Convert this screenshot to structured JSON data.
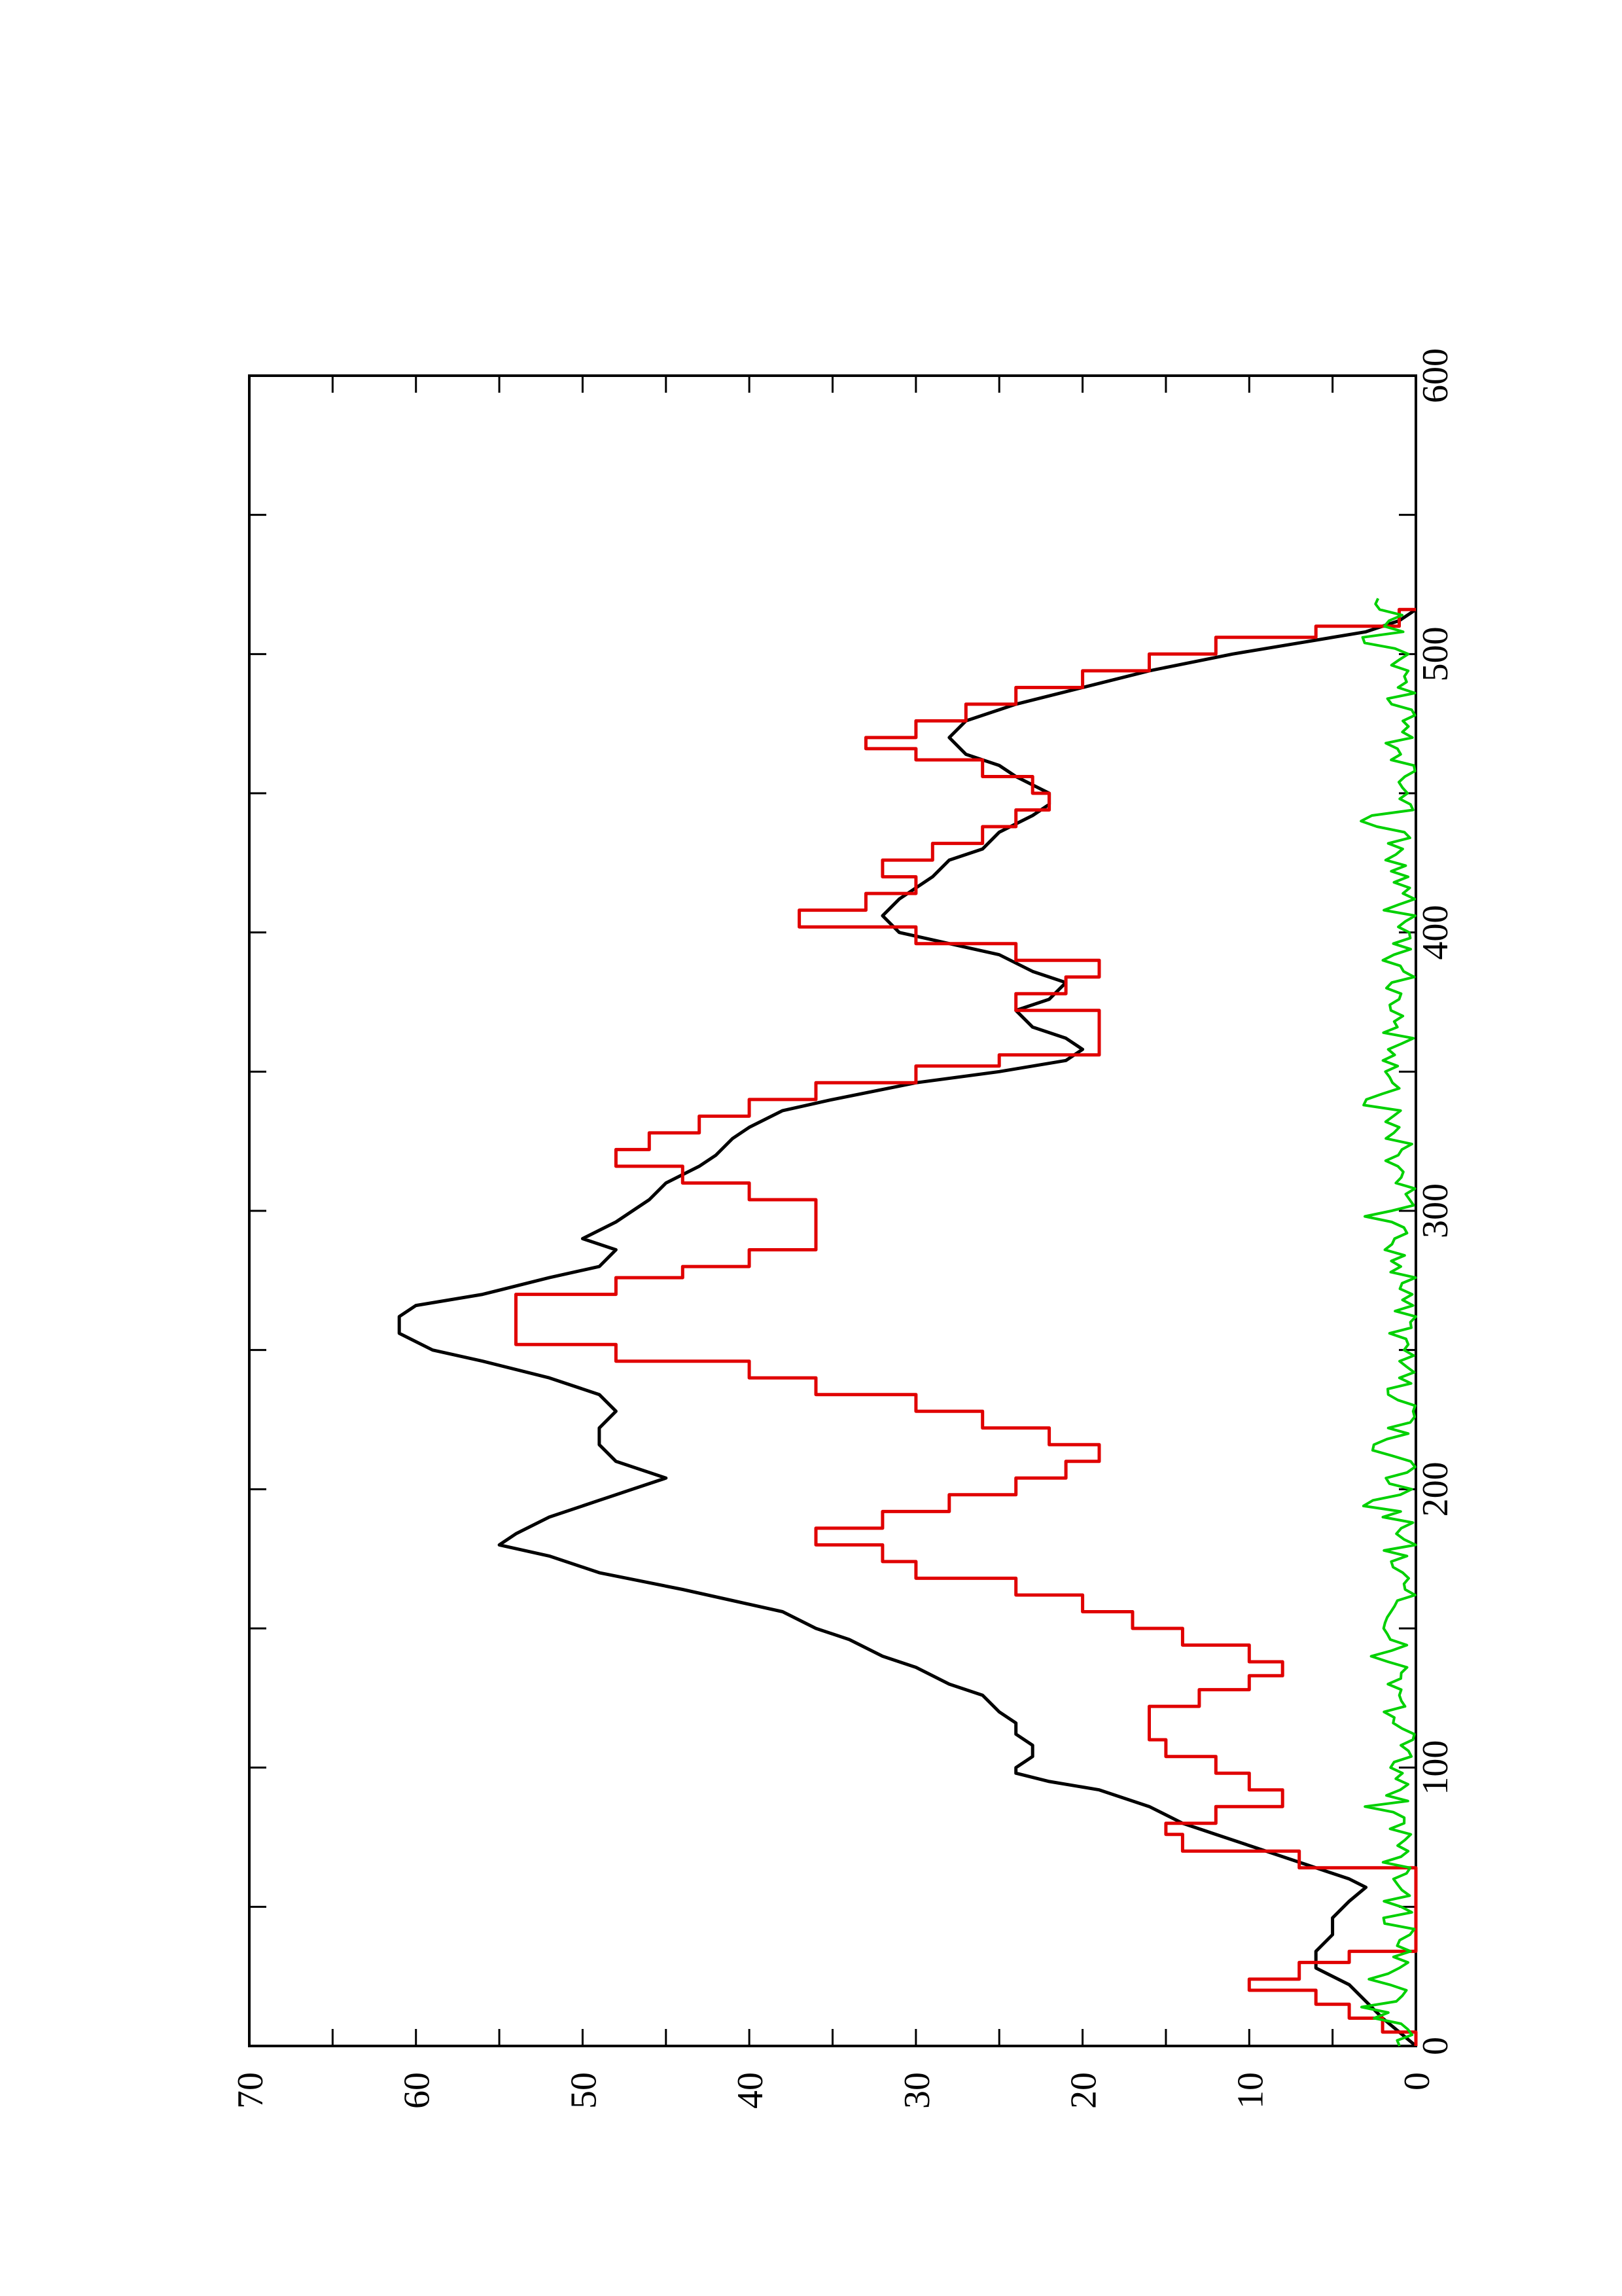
{
  "chart_data": {
    "type": "line",
    "orientation": "rotated 90° counter-clockwise (x axis runs bottom-to-top along the right side, y axis runs right-to-left)",
    "title": "",
    "xlabel": "",
    "ylabel": "",
    "xlim": [
      0,
      600
    ],
    "ylim": [
      0,
      70
    ],
    "x_ticks": [
      "0",
      "100",
      "200",
      "300",
      "400",
      "500",
      "600"
    ],
    "y_ticks": [
      "0",
      "10",
      "20",
      "30",
      "40",
      "50",
      "60",
      "70"
    ],
    "x_minor_step": 50,
    "y_minor_step": 5,
    "grid": false,
    "legend": "none",
    "series": [
      {
        "color": "#000000",
        "style": "smooth",
        "points": [
          [
            0,
            0
          ],
          [
            5,
            1
          ],
          [
            10,
            2
          ],
          [
            16,
            3
          ],
          [
            22,
            4
          ],
          [
            28,
            6
          ],
          [
            34,
            6
          ],
          [
            40,
            5
          ],
          [
            46,
            5
          ],
          [
            52,
            4
          ],
          [
            57,
            3
          ],
          [
            60,
            4
          ],
          [
            64,
            6
          ],
          [
            70,
            9
          ],
          [
            76,
            12
          ],
          [
            80,
            14
          ],
          [
            86,
            16
          ],
          [
            92,
            19
          ],
          [
            95,
            22
          ],
          [
            98,
            24
          ],
          [
            100,
            24
          ],
          [
            104,
            23
          ],
          [
            108,
            23
          ],
          [
            112,
            24
          ],
          [
            116,
            24
          ],
          [
            120,
            25
          ],
          [
            126,
            26
          ],
          [
            130,
            28
          ],
          [
            136,
            30
          ],
          [
            140,
            32
          ],
          [
            146,
            34
          ],
          [
            150,
            36
          ],
          [
            156,
            38
          ],
          [
            160,
            41
          ],
          [
            164,
            44
          ],
          [
            170,
            49
          ],
          [
            176,
            52
          ],
          [
            180,
            55
          ],
          [
            184,
            54
          ],
          [
            190,
            52
          ],
          [
            196,
            49
          ],
          [
            200,
            47
          ],
          [
            204,
            45
          ],
          [
            210,
            48
          ],
          [
            216,
            49
          ],
          [
            222,
            49
          ],
          [
            228,
            48
          ],
          [
            234,
            49
          ],
          [
            240,
            52
          ],
          [
            246,
            56
          ],
          [
            250,
            59
          ],
          [
            256,
            61
          ],
          [
            262,
            61
          ],
          [
            266,
            60
          ],
          [
            270,
            56
          ],
          [
            276,
            52
          ],
          [
            280,
            49
          ],
          [
            286,
            48
          ],
          [
            290,
            50
          ],
          [
            296,
            48
          ],
          [
            300,
            47
          ],
          [
            304,
            46
          ],
          [
            310,
            45
          ],
          [
            316,
            43
          ],
          [
            320,
            42
          ],
          [
            326,
            41
          ],
          [
            330,
            40
          ],
          [
            336,
            38
          ],
          [
            340,
            35
          ],
          [
            346,
            30
          ],
          [
            350,
            25
          ],
          [
            354,
            21
          ],
          [
            358,
            20
          ],
          [
            362,
            21
          ],
          [
            366,
            23
          ],
          [
            372,
            24
          ],
          [
            376,
            22
          ],
          [
            382,
            21
          ],
          [
            386,
            23
          ],
          [
            392,
            25
          ],
          [
            396,
            28
          ],
          [
            400,
            31
          ],
          [
            406,
            32
          ],
          [
            412,
            31
          ],
          [
            420,
            29
          ],
          [
            426,
            28
          ],
          [
            430,
            26
          ],
          [
            436,
            25
          ],
          [
            442,
            23
          ],
          [
            446,
            22
          ],
          [
            450,
            22
          ],
          [
            456,
            24
          ],
          [
            460,
            25
          ],
          [
            464,
            27
          ],
          [
            470,
            28
          ],
          [
            476,
            27
          ],
          [
            482,
            24
          ],
          [
            488,
            20
          ],
          [
            494,
            16
          ],
          [
            500,
            11
          ],
          [
            504,
            7
          ],
          [
            508,
            3
          ],
          [
            512,
            1
          ],
          [
            516,
            0
          ]
        ]
      },
      {
        "color": "#e00000",
        "style": "step",
        "points": [
          [
            0,
            0
          ],
          [
            5,
            2
          ],
          [
            10,
            4
          ],
          [
            15,
            6
          ],
          [
            20,
            10
          ],
          [
            24,
            7
          ],
          [
            30,
            4
          ],
          [
            34,
            0
          ],
          [
            40,
            0
          ],
          [
            46,
            0
          ],
          [
            52,
            0
          ],
          [
            58,
            0
          ],
          [
            64,
            7
          ],
          [
            70,
            14
          ],
          [
            76,
            15
          ],
          [
            80,
            12
          ],
          [
            86,
            8
          ],
          [
            92,
            10
          ],
          [
            98,
            12
          ],
          [
            104,
            15
          ],
          [
            110,
            16
          ],
          [
            116,
            16
          ],
          [
            122,
            13
          ],
          [
            128,
            10
          ],
          [
            133,
            8
          ],
          [
            138,
            10
          ],
          [
            144,
            14
          ],
          [
            150,
            17
          ],
          [
            156,
            20
          ],
          [
            162,
            24
          ],
          [
            168,
            30
          ],
          [
            174,
            32
          ],
          [
            180,
            36
          ],
          [
            186,
            32
          ],
          [
            192,
            28
          ],
          [
            198,
            24
          ],
          [
            204,
            21
          ],
          [
            210,
            19
          ],
          [
            216,
            22
          ],
          [
            222,
            26
          ],
          [
            228,
            30
          ],
          [
            234,
            36
          ],
          [
            240,
            40
          ],
          [
            246,
            48
          ],
          [
            252,
            54
          ],
          [
            258,
            54
          ],
          [
            264,
            54
          ],
          [
            270,
            48
          ],
          [
            276,
            44
          ],
          [
            280,
            40
          ],
          [
            286,
            36
          ],
          [
            292,
            36
          ],
          [
            298,
            36
          ],
          [
            304,
            40
          ],
          [
            310,
            44
          ],
          [
            316,
            48
          ],
          [
            322,
            46
          ],
          [
            328,
            43
          ],
          [
            334,
            40
          ],
          [
            340,
            36
          ],
          [
            346,
            30
          ],
          [
            352,
            25
          ],
          [
            356,
            19
          ],
          [
            362,
            19
          ],
          [
            368,
            19
          ],
          [
            372,
            24
          ],
          [
            378,
            21
          ],
          [
            384,
            19
          ],
          [
            390,
            24
          ],
          [
            396,
            30
          ],
          [
            402,
            37
          ],
          [
            408,
            33
          ],
          [
            414,
            30
          ],
          [
            420,
            32
          ],
          [
            426,
            29
          ],
          [
            432,
            26
          ],
          [
            438,
            24
          ],
          [
            444,
            22
          ],
          [
            450,
            23
          ],
          [
            456,
            26
          ],
          [
            462,
            30
          ],
          [
            466,
            33
          ],
          [
            470,
            30
          ],
          [
            476,
            27
          ],
          [
            482,
            24
          ],
          [
            488,
            20
          ],
          [
            494,
            16
          ],
          [
            500,
            12
          ],
          [
            506,
            6
          ],
          [
            510,
            1
          ],
          [
            516,
            0
          ]
        ]
      },
      {
        "color": "#00d000",
        "style": "noisy",
        "range": [
          0,
          520
        ],
        "baseline": 1.0,
        "amplitude": 1.0,
        "bumps": [
          [
            12,
            1.5
          ],
          [
            25,
            1.5
          ],
          [
            85,
            1.2
          ],
          [
            140,
            1.2
          ],
          [
            195,
            1.4
          ],
          [
            215,
            1.2
          ],
          [
            298,
            1.3
          ],
          [
            340,
            1.2
          ],
          [
            440,
            1.5
          ],
          [
            505,
            1.3
          ],
          [
            518,
            2.0
          ]
        ]
      }
    ]
  }
}
